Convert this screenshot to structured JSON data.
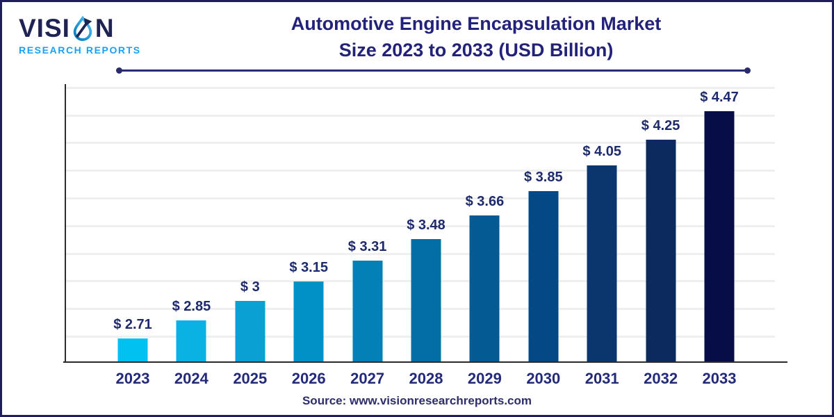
{
  "brand": {
    "name_pre": "VISI",
    "name_post": "N",
    "subtitle": "RESEARCH REPORTS"
  },
  "header": {
    "title_line1": "Automotive Engine Encapsulation Market",
    "title_line2": "Size 2023 to 2033 (USD Billion)"
  },
  "footer": {
    "source_text": "Source: www.visionresearchreports.com"
  },
  "colors": {
    "title_navy": "#23227a",
    "brand_name_navy": "#1e2353",
    "brand_subtitle_blue": "#1a9ff2",
    "page_border_navy": "#201d5e",
    "divider_navy": "#2b2a6e",
    "axis_line": "#2b2b2b",
    "gridline_gray": "#efefef",
    "value_label_navy": "#1e2a6e"
  },
  "chart_data": {
    "type": "bar",
    "title": "Automotive Engine Encapsulation Market Size 2023 to 2033 (USD Billion)",
    "unit": "USD Billion",
    "categories": [
      "2023",
      "2024",
      "2025",
      "2026",
      "2027",
      "2028",
      "2029",
      "2030",
      "2031",
      "2032",
      "2033"
    ],
    "values": [
      2.71,
      2.85,
      3,
      3.15,
      3.31,
      3.48,
      3.66,
      3.85,
      4.05,
      4.25,
      4.47
    ],
    "value_labels": [
      "$ 2.71",
      "$ 2.85",
      "$ 3",
      "$ 3.15",
      "$ 3.31",
      "$ 3.48",
      "$ 3.66",
      "$ 3.85",
      "$ 4.05",
      "$ 4.25",
      "$ 4.47"
    ],
    "bar_colors": [
      "#01c1f1",
      "#09b2e3",
      "#0aa0d3",
      "#0291c7",
      "#0380b5",
      "#026ea5",
      "#045a93",
      "#054886",
      "#0a356d",
      "#0d2a5f",
      "#060d47"
    ],
    "ylim": [
      2.53,
      4.67
    ],
    "xlabel": "",
    "ylabel": "",
    "grid": "horizontal-only",
    "legend": "none",
    "source": "www.visionresearchreports.com"
  }
}
